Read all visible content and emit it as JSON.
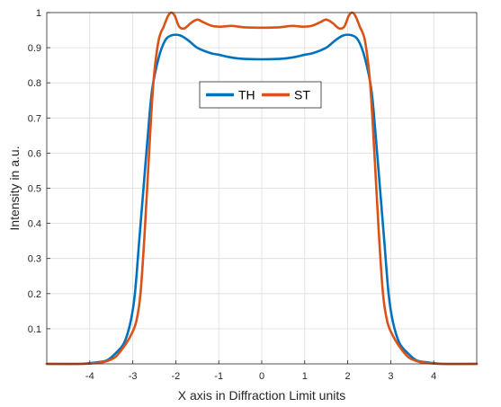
{
  "chart_data": {
    "type": "line",
    "xlabel": "X axis in Diffraction Limit units",
    "ylabel": "Intensity in a.u.",
    "xlim": [
      -5,
      5
    ],
    "ylim": [
      0,
      1
    ],
    "x_ticks": [
      -4,
      -3,
      -2,
      -1,
      0,
      1,
      2,
      3,
      4
    ],
    "x_tick_labels": [
      "-4",
      "-3",
      "-2",
      "-1",
      "0",
      "1",
      "2",
      "3",
      "4"
    ],
    "y_ticks": [
      0.1,
      0.2,
      0.3,
      0.4,
      0.5,
      0.6,
      0.7,
      0.8,
      0.9,
      1
    ],
    "y_tick_labels": [
      "0.1",
      "0.2",
      "0.3",
      "0.4",
      "0.5",
      "0.6",
      "0.7",
      "0.8",
      "0.9",
      "1"
    ],
    "grid": true,
    "legend_position": "center-left, upper",
    "series": [
      {
        "name": "TH",
        "color": "#0072BD",
        "points": [
          [
            -5,
            0.0
          ],
          [
            -4.2,
            0.0
          ],
          [
            -3.8,
            0.005
          ],
          [
            -3.6,
            0.01
          ],
          [
            -3.4,
            0.03
          ],
          [
            -3.2,
            0.06
          ],
          [
            -3.05,
            0.12
          ],
          [
            -2.95,
            0.2
          ],
          [
            -2.85,
            0.35
          ],
          [
            -2.75,
            0.5
          ],
          [
            -2.65,
            0.65
          ],
          [
            -2.55,
            0.78
          ],
          [
            -2.4,
            0.87
          ],
          [
            -2.25,
            0.92
          ],
          [
            -2.1,
            0.935
          ],
          [
            -1.9,
            0.935
          ],
          [
            -1.7,
            0.92
          ],
          [
            -1.5,
            0.9
          ],
          [
            -1.2,
            0.885
          ],
          [
            -1.0,
            0.88
          ],
          [
            -0.7,
            0.872
          ],
          [
            -0.4,
            0.868
          ],
          [
            0.0,
            0.867
          ],
          [
            0.4,
            0.868
          ],
          [
            0.7,
            0.872
          ],
          [
            1.0,
            0.88
          ],
          [
            1.2,
            0.885
          ],
          [
            1.5,
            0.9
          ],
          [
            1.7,
            0.92
          ],
          [
            1.9,
            0.935
          ],
          [
            2.1,
            0.935
          ],
          [
            2.25,
            0.92
          ],
          [
            2.4,
            0.87
          ],
          [
            2.55,
            0.78
          ],
          [
            2.65,
            0.65
          ],
          [
            2.75,
            0.5
          ],
          [
            2.85,
            0.35
          ],
          [
            2.95,
            0.2
          ],
          [
            3.05,
            0.12
          ],
          [
            3.2,
            0.06
          ],
          [
            3.4,
            0.03
          ],
          [
            3.6,
            0.01
          ],
          [
            3.8,
            0.005
          ],
          [
            4.2,
            0.0
          ],
          [
            5,
            0.0
          ]
        ]
      },
      {
        "name": "ST",
        "color": "#D95319",
        "points": [
          [
            -5,
            0.0
          ],
          [
            -4.2,
            0.0
          ],
          [
            -3.8,
            0.003
          ],
          [
            -3.6,
            0.008
          ],
          [
            -3.4,
            0.02
          ],
          [
            -3.2,
            0.05
          ],
          [
            -3.05,
            0.08
          ],
          [
            -2.92,
            0.12
          ],
          [
            -2.82,
            0.2
          ],
          [
            -2.72,
            0.38
          ],
          [
            -2.62,
            0.6
          ],
          [
            -2.52,
            0.8
          ],
          [
            -2.4,
            0.92
          ],
          [
            -2.28,
            0.96
          ],
          [
            -2.18,
            0.99
          ],
          [
            -2.1,
            1.0
          ],
          [
            -2.02,
            0.99
          ],
          [
            -1.92,
            0.96
          ],
          [
            -1.8,
            0.955
          ],
          [
            -1.65,
            0.97
          ],
          [
            -1.5,
            0.98
          ],
          [
            -1.35,
            0.972
          ],
          [
            -1.15,
            0.962
          ],
          [
            -0.95,
            0.96
          ],
          [
            -0.7,
            0.962
          ],
          [
            -0.4,
            0.958
          ],
          [
            0.0,
            0.957
          ],
          [
            0.4,
            0.958
          ],
          [
            0.7,
            0.962
          ],
          [
            0.95,
            0.96
          ],
          [
            1.15,
            0.962
          ],
          [
            1.35,
            0.972
          ],
          [
            1.5,
            0.98
          ],
          [
            1.65,
            0.97
          ],
          [
            1.8,
            0.955
          ],
          [
            1.92,
            0.96
          ],
          [
            2.02,
            0.99
          ],
          [
            2.1,
            1.0
          ],
          [
            2.18,
            0.99
          ],
          [
            2.28,
            0.96
          ],
          [
            2.4,
            0.92
          ],
          [
            2.52,
            0.8
          ],
          [
            2.62,
            0.6
          ],
          [
            2.72,
            0.38
          ],
          [
            2.82,
            0.2
          ],
          [
            2.92,
            0.12
          ],
          [
            3.05,
            0.08
          ],
          [
            3.2,
            0.05
          ],
          [
            3.4,
            0.02
          ],
          [
            3.6,
            0.008
          ],
          [
            3.8,
            0.003
          ],
          [
            4.2,
            0.0
          ],
          [
            5,
            0.0
          ]
        ]
      }
    ]
  }
}
